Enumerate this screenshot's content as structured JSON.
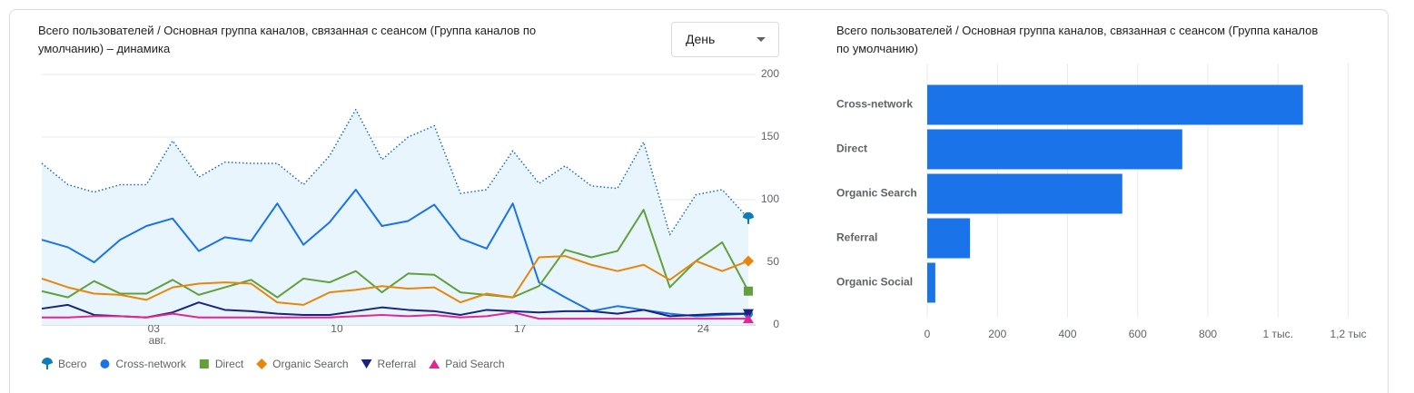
{
  "controls": {
    "period": "День"
  },
  "chart_data": [
    {
      "type": "line",
      "title": "Всего пользователей / Основная группа каналов, связанная с сеансом (Группа каналов по умолчанию) – динамика",
      "categories": [
        null,
        null,
        null,
        null,
        "03",
        null,
        null,
        null,
        null,
        null,
        null,
        "10",
        null,
        null,
        null,
        null,
        null,
        null,
        "17",
        null,
        null,
        null,
        null,
        null,
        null,
        "24",
        null,
        null
      ],
      "month_label": "авг.",
      "ylim": [
        0,
        200
      ],
      "yticks": [
        0,
        50,
        100,
        150,
        200
      ],
      "grid": true,
      "legend": "bottom",
      "series": [
        {
          "name": "Всего",
          "color": "#1967d2",
          "marker_color": "#0b7dba",
          "marker": "pin",
          "style": "dotted",
          "area": true,
          "values": [
            129,
            112,
            106,
            112,
            112,
            147,
            118,
            130,
            129,
            129,
            112,
            135,
            172,
            132,
            150,
            159,
            105,
            108,
            139,
            113,
            127,
            111,
            109,
            146,
            72,
            104,
            108,
            85
          ]
        },
        {
          "name": "Cross-network",
          "color": "#1a73e8",
          "marker": "circle",
          "values": [
            68,
            62,
            50,
            68,
            79,
            85,
            59,
            70,
            67,
            97,
            64,
            82,
            108,
            79,
            83,
            96,
            69,
            61,
            97,
            34,
            22,
            11,
            15,
            12,
            9,
            7,
            8,
            9
          ]
        },
        {
          "name": "Direct",
          "color": "#63a03d",
          "marker": "square",
          "values": [
            27,
            22,
            35,
            25,
            25,
            36,
            24,
            30,
            36,
            22,
            37,
            34,
            43,
            26,
            41,
            40,
            26,
            24,
            22,
            31,
            60,
            54,
            59,
            92,
            30,
            51,
            66,
            27
          ]
        },
        {
          "name": "Organic Search",
          "color": "#e8860c",
          "marker": "diamond",
          "values": [
            37,
            30,
            25,
            24,
            20,
            30,
            33,
            34,
            33,
            18,
            16,
            26,
            28,
            31,
            29,
            30,
            18,
            25,
            22,
            54,
            55,
            48,
            43,
            48,
            36,
            51,
            43,
            51
          ]
        },
        {
          "name": "Referral",
          "color": "#1a237e",
          "marker": "triangle-down",
          "values": [
            13,
            16,
            8,
            7,
            6,
            10,
            18,
            12,
            11,
            9,
            8,
            8,
            11,
            14,
            12,
            11,
            8,
            12,
            11,
            10,
            11,
            11,
            9,
            12,
            7,
            8,
            9,
            9
          ]
        },
        {
          "name": "Paid Search",
          "color": "#e52592",
          "marker": "triangle-up",
          "values": [
            6,
            6,
            7,
            7,
            6,
            9,
            6,
            6,
            6,
            6,
            6,
            6,
            7,
            8,
            7,
            8,
            6,
            7,
            10,
            5,
            5,
            5,
            5,
            5,
            5,
            5,
            5,
            5
          ]
        }
      ]
    },
    {
      "type": "hbar",
      "title": "Всего пользователей / Основная группа каналов, связанная с сеансом (Группа каналов по умолчанию)",
      "categories": [
        "Cross-network",
        "Direct",
        "Organic Search",
        "Referral",
        "Organic Social"
      ],
      "values": [
        1071,
        727,
        556,
        122,
        23
      ],
      "color": "#1a73e8",
      "xlim": [
        0,
        1240
      ],
      "xticks": [
        0,
        200,
        400,
        600,
        800,
        {
          "value": 1000,
          "label": "1 тыс."
        },
        {
          "value": 1200,
          "label": "1,2 тыс"
        }
      ],
      "grid": true
    }
  ]
}
